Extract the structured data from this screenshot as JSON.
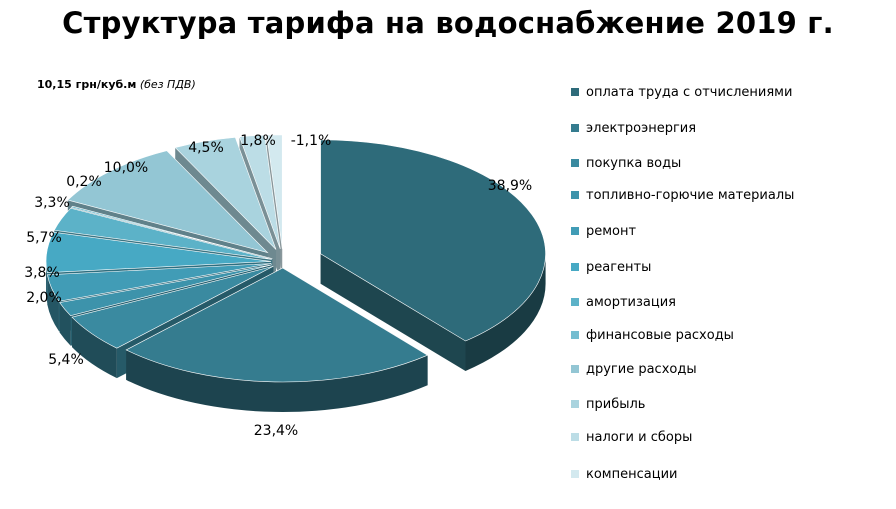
{
  "title": "Структура тарифа на водоснабжение 2019 г.",
  "subtitle": {
    "price": "10,15 грн/куб.м",
    "note": "(без ПДВ)"
  },
  "chart_data": {
    "type": "pie",
    "title": "Структура тарифа на водоснабжение 2019 г.",
    "subtitle": "10,15 грн/куб.м (без ПДВ)",
    "legend_position": "right",
    "series": [
      {
        "name": "оплата труда с отчислениями",
        "value": 38.9,
        "label": "38,9%",
        "color": "#2e6b7a"
      },
      {
        "name": "электроэнергия",
        "value": 23.4,
        "label": "23,4%",
        "color": "#357c8f"
      },
      {
        "name": "покупка воды",
        "value": 5.4,
        "label": "5,4%",
        "color": "#3a8aa0"
      },
      {
        "name": "топливно-горючие материалы",
        "value": 2.0,
        "label": "2,0%",
        "color": "#3d93ab"
      },
      {
        "name": "ремонт",
        "value": 3.8,
        "label": "3,8%",
        "color": "#419cb6"
      },
      {
        "name": "реагенты",
        "value": 5.7,
        "label": "5,7%",
        "color": "#47a9c4"
      },
      {
        "name": "амортизация",
        "value": 3.3,
        "label": "3,3%",
        "color": "#5cb2c8"
      },
      {
        "name": "финансовые расходы",
        "value": 0.2,
        "label": "0,2%",
        "color": "#74bdd0"
      },
      {
        "name": "другие расходы",
        "value": 10.0,
        "label": "10,0%",
        "color": "#93c6d4"
      },
      {
        "name": "прибыль",
        "value": 4.5,
        "label": "4,5%",
        "color": "#a9d3de"
      },
      {
        "name": "налоги и сборы",
        "value": 1.8,
        "label": "1,8%",
        "color": "#bcdde6"
      },
      {
        "name": "компенсации",
        "value": -1.1,
        "label": "-1,1%",
        "color": "#d3e9ef"
      }
    ]
  }
}
